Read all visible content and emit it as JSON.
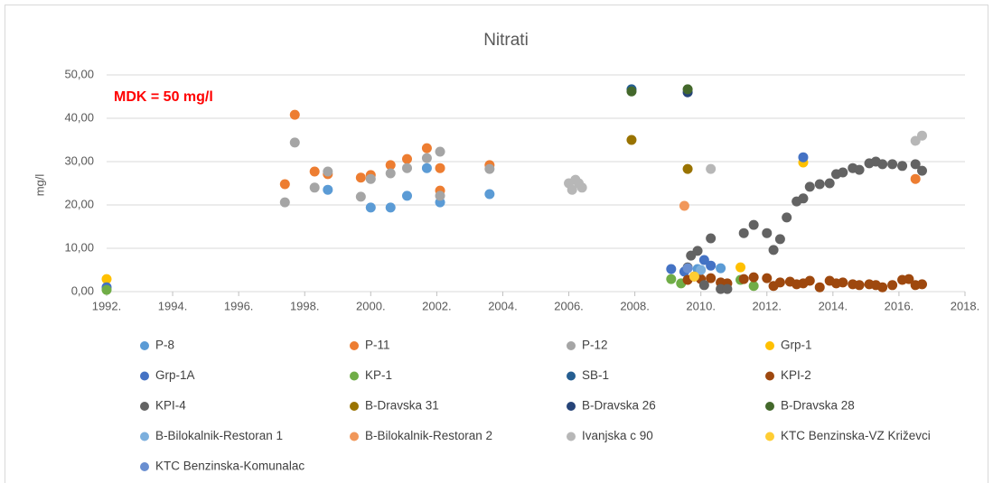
{
  "chart_data": {
    "type": "scatter",
    "title": "Nitrati",
    "y_label": "mg/l",
    "annotation": "MDK = 50 mg/l",
    "xlim": [
      1992,
      2018
    ],
    "xticks": [
      {
        "value": 1992,
        "label": "1992."
      },
      {
        "value": 1994,
        "label": "1994."
      },
      {
        "value": 1996,
        "label": "1996."
      },
      {
        "value": 1998,
        "label": "1998."
      },
      {
        "value": 2000,
        "label": "2000."
      },
      {
        "value": 2002,
        "label": "2002."
      },
      {
        "value": 2004,
        "label": "2004."
      },
      {
        "value": 2006,
        "label": "2006."
      },
      {
        "value": 2008,
        "label": "2008."
      },
      {
        "value": 2010,
        "label": "2010."
      },
      {
        "value": 2012,
        "label": "2012."
      },
      {
        "value": 2014,
        "label": "2014."
      },
      {
        "value": 2016,
        "label": "2016."
      },
      {
        "value": 2018,
        "label": "2018."
      }
    ],
    "ylim": [
      0,
      50
    ],
    "yticks": [
      {
        "value": 0,
        "label": "0,00"
      },
      {
        "value": 10,
        "label": "10,00"
      },
      {
        "value": 20,
        "label": "20,00"
      },
      {
        "value": 30,
        "label": "30,00"
      },
      {
        "value": 40,
        "label": "40,00"
      },
      {
        "value": 50,
        "label": "50,00"
      }
    ],
    "grid": true,
    "legend": "bottom",
    "series": [
      {
        "name": "P-8",
        "color": "#5b9bd5",
        "x": [
          1998.7,
          2000.0,
          2000.6,
          2001.1,
          2001.7,
          2002.1,
          2003.6,
          2009.9,
          2010.6
        ],
        "values": [
          23.5,
          19.4,
          19.4,
          22.1,
          28.5,
          20.6,
          22.5,
          5.2,
          5.4
        ]
      },
      {
        "name": "P-11",
        "color": "#ed7d31",
        "x": [
          1997.4,
          1997.7,
          1998.3,
          1998.7,
          1999.7,
          2000.0,
          2000.6,
          2001.1,
          2001.7,
          2002.1,
          2002.1,
          2003.6,
          2016.5
        ],
        "values": [
          24.8,
          40.8,
          27.7,
          27.1,
          26.3,
          26.9,
          29.2,
          30.6,
          33.1,
          28.5,
          23.3,
          29.2,
          26.0
        ]
      },
      {
        "name": "P-12",
        "color": "#a5a5a5",
        "x": [
          1997.4,
          1997.7,
          1998.3,
          1998.7,
          1999.7,
          2000.0,
          2000.6,
          2001.1,
          2001.7,
          2002.1,
          2002.1,
          2003.6
        ],
        "values": [
          20.6,
          34.4,
          24.0,
          27.7,
          21.9,
          26.0,
          27.3,
          28.5,
          30.8,
          32.3,
          22.1,
          28.3
        ]
      },
      {
        "name": "Grp-1",
        "color": "#ffc000",
        "x": [
          1992.0,
          2011.2,
          2013.1
        ],
        "values": [
          2.9,
          5.6,
          29.8
        ]
      },
      {
        "name": "Grp-1A",
        "color": "#4472c4",
        "x": [
          1992.0,
          2009.1,
          2009.5,
          2010.1,
          2010.3,
          2013.1
        ],
        "values": [
          1.0,
          5.2,
          4.6,
          7.3,
          6.0,
          31.0
        ]
      },
      {
        "name": "KP-1",
        "color": "#70ad47",
        "x": [
          1992.0,
          2009.1,
          2009.4,
          2011.2,
          2011.6
        ],
        "values": [
          0.4,
          2.9,
          1.9,
          2.7,
          1.3
        ]
      },
      {
        "name": "SB-1",
        "color": "#255e91",
        "x": [
          2007.9
        ],
        "values": [
          46.7
        ]
      },
      {
        "name": "KPI-2",
        "color": "#9e480e",
        "x": [
          2009.6,
          2009.8,
          2010.0,
          2010.3,
          2010.6,
          2010.8,
          2011.3,
          2011.6,
          2012.0,
          2012.2,
          2012.4,
          2012.7,
          2012.9,
          2013.1,
          2013.3,
          2013.6,
          2013.9,
          2014.1,
          2014.3,
          2014.6,
          2014.8,
          2015.1,
          2015.3,
          2015.5,
          2015.8,
          2016.1,
          2016.3,
          2016.5,
          2016.7
        ],
        "values": [
          2.7,
          3.5,
          2.9,
          3.1,
          2.1,
          1.9,
          2.9,
          3.3,
          3.1,
          1.3,
          2.1,
          2.3,
          1.7,
          1.9,
          2.5,
          1.0,
          2.5,
          1.9,
          2.1,
          1.7,
          1.5,
          1.7,
          1.5,
          1.0,
          1.5,
          2.7,
          2.9,
          1.5,
          1.7
        ]
      },
      {
        "name": "KPI-4",
        "color": "#636363",
        "x": [
          2009.6,
          2009.7,
          2009.9,
          2010.1,
          2010.3,
          2010.6,
          2010.8,
          2011.3,
          2011.6,
          2012.0,
          2012.2,
          2012.4,
          2012.6,
          2012.9,
          2013.1,
          2013.3,
          2013.6,
          2013.9,
          2014.1,
          2014.3,
          2014.6,
          2014.8,
          2015.1,
          2015.3,
          2015.5,
          2015.8,
          2016.1,
          2016.5,
          2016.7
        ],
        "values": [
          5.6,
          8.3,
          9.4,
          1.5,
          12.3,
          0.6,
          0.6,
          13.5,
          15.4,
          13.5,
          9.6,
          12.1,
          17.1,
          20.8,
          21.5,
          24.2,
          24.8,
          25.0,
          27.1,
          27.5,
          28.5,
          28.1,
          29.6,
          30.0,
          29.4,
          29.4,
          29.0,
          29.4,
          27.9
        ]
      },
      {
        "name": "B-Dravska 31",
        "color": "#997300",
        "x": [
          2007.9,
          2009.6
        ],
        "values": [
          35.0,
          28.3
        ]
      },
      {
        "name": "B-Dravska 26",
        "color": "#264478",
        "x": [
          2009.6
        ],
        "values": [
          46.0
        ]
      },
      {
        "name": "B-Dravska 28",
        "color": "#43682b",
        "x": [
          2007.9,
          2009.6
        ],
        "values": [
          46.2,
          46.7
        ]
      },
      {
        "name": "B-Bilokalnik-Restoran 1",
        "color": "#7cafdd",
        "x": [
          2010.0
        ],
        "values": [
          5.0
        ]
      },
      {
        "name": "B-Bilokalnik-Restoran 2",
        "color": "#f1975a",
        "x": [
          2009.5
        ],
        "values": [
          19.8
        ]
      },
      {
        "name": "Ivanjska c 90",
        "color": "#b7b7b7",
        "x": [
          2006.0,
          2006.2,
          2006.1,
          2006.3,
          2006.4,
          2010.3,
          2016.5,
          2016.7
        ],
        "values": [
          25.0,
          25.8,
          23.5,
          25.0,
          24.0,
          28.3,
          34.8,
          36.0
        ]
      },
      {
        "name": "KTC Benzinska-VZ Križevci",
        "color": "#ffcd33",
        "x": [
          2009.8
        ],
        "values": [
          3.5
        ]
      },
      {
        "name": "KTC Benzinska-Komunalac",
        "color": "#698ed0",
        "x": [
          2009.6
        ],
        "values": [
          5.4
        ]
      }
    ]
  }
}
